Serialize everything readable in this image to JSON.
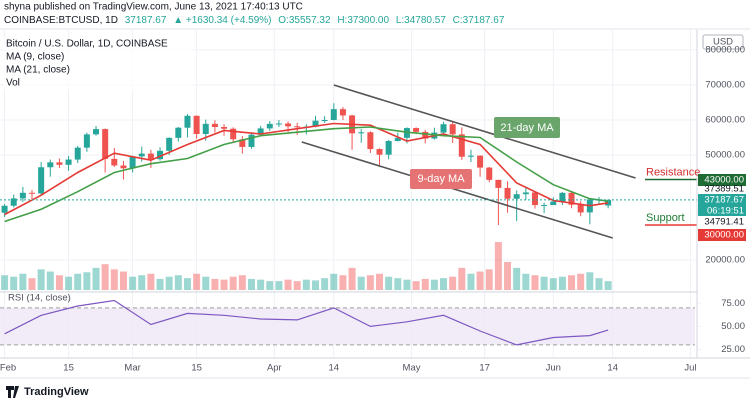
{
  "header": {
    "publisher": "shyna published on TradingView.com, June 13, 2021 17:40:13 UTC",
    "symbol": "COINBASE:BTCUSD, 1D",
    "last": "37187.67",
    "change": "▲ +1630.34 (+4.59%)",
    "open": "O:35557.32",
    "high": "H:37300.00",
    "low": "L:34780.57",
    "close": "C:37187.67"
  },
  "footer": {
    "brand": "TradingView"
  },
  "chart_data": {
    "type": "candlestick",
    "title": "Bitcoin / U.S. Dollar, 1D, COINBASE",
    "x": [
      "2021-02-01",
      "2021-02-03",
      "2021-02-05",
      "2021-02-07",
      "2021-02-09",
      "2021-02-11",
      "2021-02-13",
      "2021-02-15",
      "2021-02-17",
      "2021-02-19",
      "2021-02-21",
      "2021-02-23",
      "2021-02-25",
      "2021-02-27",
      "2021-03-01",
      "2021-03-03",
      "2021-03-05",
      "2021-03-07",
      "2021-03-09",
      "2021-03-11",
      "2021-03-13",
      "2021-03-15",
      "2021-03-17",
      "2021-03-19",
      "2021-03-21",
      "2021-03-23",
      "2021-03-25",
      "2021-03-27",
      "2021-03-29",
      "2021-03-31",
      "2021-04-02",
      "2021-04-04",
      "2021-04-06",
      "2021-04-08",
      "2021-04-10",
      "2021-04-12",
      "2021-04-14",
      "2021-04-16",
      "2021-04-18",
      "2021-04-20",
      "2021-04-22",
      "2021-04-24",
      "2021-04-26",
      "2021-04-28",
      "2021-04-30",
      "2021-05-02",
      "2021-05-04",
      "2021-05-06",
      "2021-05-08",
      "2021-05-10",
      "2021-05-12",
      "2021-05-14",
      "2021-05-16",
      "2021-05-18",
      "2021-05-20",
      "2021-05-22",
      "2021-05-24",
      "2021-05-26",
      "2021-05-28",
      "2021-05-30",
      "2021-06-01",
      "2021-06-03",
      "2021-06-05",
      "2021-06-07",
      "2021-06-09",
      "2021-06-11",
      "2021-06-13"
    ],
    "open": [
      33500,
      35500,
      37600,
      39200,
      39000,
      46500,
      47900,
      47200,
      48700,
      52100,
      55900,
      57400,
      48900,
      47000,
      46200,
      49600,
      50400,
      48800,
      51200,
      54900,
      57800,
      61200,
      56000,
      58900,
      58000,
      57500,
      54500,
      52300,
      55800,
      57600,
      58900,
      59000,
      58200,
      58000,
      58100,
      59800,
      60000,
      63100,
      61300,
      56200,
      56500,
      51700,
      50100,
      54000,
      54900,
      57700,
      56600,
      54700,
      56400,
      58800,
      55900,
      49500,
      49800,
      46400,
      42900,
      40600,
      37500,
      38800,
      39300,
      35700,
      35700,
      36700,
      39200,
      35800,
      33600,
      37300,
      35560
    ],
    "high": [
      36000,
      38700,
      40900,
      40000,
      48000,
      48700,
      49000,
      49700,
      52600,
      56400,
      58300,
      57600,
      52000,
      48300,
      49800,
      52400,
      51500,
      52200,
      55000,
      58000,
      61700,
      61300,
      60100,
      59900,
      58800,
      57900,
      55400,
      56500,
      58300,
      59700,
      60000,
      59600,
      59200,
      58800,
      61200,
      61100,
      64800,
      63700,
      61500,
      57400,
      56800,
      51900,
      54300,
      56400,
      57900,
      57900,
      57200,
      57800,
      59500,
      59500,
      57900,
      51500,
      49900,
      46600,
      42900,
      42500,
      39900,
      40800,
      39400,
      36400,
      37900,
      39400,
      39300,
      36800,
      37500,
      38000,
      37300
    ],
    "low": [
      32300,
      35000,
      36600,
      37400,
      38300,
      43800,
      46300,
      45500,
      47700,
      50900,
      55500,
      45000,
      46600,
      43000,
      45000,
      48100,
      46300,
      48400,
      50000,
      53800,
      55000,
      54700,
      54100,
      56400,
      55500,
      53400,
      50400,
      51800,
      55400,
      56900,
      58000,
      56500,
      55700,
      55900,
      57900,
      59200,
      59900,
      60000,
      51500,
      53500,
      50600,
      47100,
      48800,
      53900,
      53300,
      56000,
      53300,
      54400,
      56000,
      53400,
      48600,
      48000,
      43800,
      42200,
      30000,
      33500,
      31100,
      37200,
      34700,
      33400,
      35700,
      35700,
      34800,
      32500,
      30200,
      35900,
      34780
    ],
    "close": [
      35500,
      37600,
      39200,
      39000,
      46500,
      47900,
      47200,
      48700,
      52100,
      55900,
      57400,
      48900,
      47000,
      46200,
      49600,
      50400,
      48800,
      51200,
      54900,
      57800,
      61200,
      56000,
      58900,
      58000,
      57500,
      54500,
      52300,
      55800,
      57600,
      58900,
      59000,
      58200,
      58000,
      58100,
      59800,
      60000,
      63100,
      61300,
      56200,
      56500,
      51700,
      50100,
      54000,
      54900,
      57700,
      56600,
      54700,
      56400,
      58800,
      55900,
      49500,
      49800,
      46400,
      42900,
      40600,
      37500,
      38800,
      39300,
      35700,
      35700,
      36700,
      39200,
      35800,
      33600,
      37300,
      37300,
      37190
    ],
    "volume": [
      20,
      18,
      22,
      16,
      28,
      25,
      20,
      18,
      22,
      24,
      30,
      35,
      28,
      25,
      18,
      20,
      22,
      15,
      18,
      20,
      16,
      22,
      18,
      15,
      14,
      18,
      20,
      15,
      14,
      12,
      12,
      14,
      12,
      14,
      13,
      16,
      22,
      20,
      30,
      18,
      20,
      22,
      18,
      16,
      14,
      12,
      15,
      14,
      16,
      18,
      30,
      22,
      25,
      28,
      65,
      38,
      30,
      22,
      20,
      18,
      16,
      18,
      20,
      22,
      24,
      16,
      12
    ],
    "volume_label": "Vol",
    "up_color": "#26a69a",
    "down_color": "#ef5350",
    "xlim": [
      "2021-01-31",
      "2021-07-02"
    ],
    "xticks": [
      {
        "value": "2021-02-01",
        "label": "Feb"
      },
      {
        "value": "2021-02-15",
        "label": "15"
      },
      {
        "value": "2021-03-01",
        "label": "Mar"
      },
      {
        "value": "2021-03-15",
        "label": "15"
      },
      {
        "value": "2021-04-01",
        "label": "Apr"
      },
      {
        "value": "2021-04-14",
        "label": "14"
      },
      {
        "value": "2021-05-01",
        "label": "May"
      },
      {
        "value": "2021-05-17",
        "label": "17"
      },
      {
        "value": "2021-06-01",
        "label": "Jun"
      },
      {
        "value": "2021-06-14",
        "label": "14"
      },
      {
        "value": "2021-07-01",
        "label": "Jul"
      }
    ],
    "ylim": [
      11428,
      82857
    ],
    "yticks": [
      {
        "value": 20000,
        "label": "20000.00"
      },
      {
        "value": 50000,
        "label": "50000.00"
      },
      {
        "value": 60000,
        "label": "60000.00"
      },
      {
        "value": 70000,
        "label": "70000.00"
      },
      {
        "value": 80000,
        "label": "80000.00"
      }
    ],
    "y_unit": "USD",
    "grid": true,
    "series": [
      {
        "name": "MA (9, close)",
        "color": "#e53935",
        "x": [
          "2021-02-01",
          "2021-02-09",
          "2021-02-17",
          "2021-02-25",
          "2021-03-05",
          "2021-03-13",
          "2021-03-21",
          "2021-03-29",
          "2021-04-06",
          "2021-04-14",
          "2021-04-22",
          "2021-04-30",
          "2021-05-08",
          "2021-05-16",
          "2021-05-24",
          "2021-06-01",
          "2021-06-09",
          "2021-06-13"
        ],
        "values": [
          33000,
          38500,
          45000,
          50500,
          48500,
          53000,
          57000,
          56000,
          57500,
          59000,
          58500,
          54000,
          56000,
          53000,
          42000,
          37000,
          35500,
          36300
        ]
      },
      {
        "name": "MA (21, close)",
        "color": "#43a047",
        "x": [
          "2021-02-01",
          "2021-02-09",
          "2021-02-17",
          "2021-02-25",
          "2021-03-05",
          "2021-03-13",
          "2021-03-21",
          "2021-03-29",
          "2021-04-06",
          "2021-04-14",
          "2021-04-22",
          "2021-04-30",
          "2021-05-08",
          "2021-05-16",
          "2021-05-24",
          "2021-06-01",
          "2021-06-09",
          "2021-06-13"
        ],
        "values": [
          31000,
          34500,
          39500,
          45000,
          47500,
          49000,
          53000,
          55500,
          56500,
          57500,
          58000,
          56500,
          55500,
          55000,
          48000,
          41500,
          37500,
          36800
        ]
      }
    ],
    "trendlines": [
      {
        "x": [
          "2021-04-14",
          "2021-06-19"
        ],
        "values": [
          70000,
          43430
        ],
        "color": "#555"
      },
      {
        "x": [
          "2021-04-07",
          "2021-06-14"
        ],
        "values": [
          53714,
          26286
        ],
        "color": "#555"
      }
    ],
    "levels": [
      {
        "name": "Resistance",
        "value": 43000,
        "text_color": "#d32f2f",
        "line_color": "#1e6b34"
      },
      {
        "name": "Support",
        "value": 30000,
        "text_color": "#1e7b34",
        "line_color": "#e53935"
      }
    ],
    "price_labels": [
      {
        "value": 43000,
        "label": "43000.00",
        "box": "#1e6b34"
      },
      {
        "value": 37389.51,
        "label": "37389.51"
      },
      {
        "value": 37187.67,
        "label": "37187.67",
        "box": "#26a69a"
      },
      {
        "value": 34791.41,
        "label": "34791.41"
      },
      {
        "value": 30000,
        "label": "30000.00",
        "box": "#e53935"
      }
    ],
    "countdown": "06:19:51",
    "annotations": [
      {
        "text": "21-day MA",
        "color": "#6aa56b"
      },
      {
        "text": "9-day MA",
        "color": "#e57373"
      }
    ],
    "rsi": {
      "name": "RSI (14, close)",
      "color": "#7e57c2",
      "x": [
        "2021-02-01",
        "2021-02-09",
        "2021-02-17",
        "2021-02-25",
        "2021-03-05",
        "2021-03-13",
        "2021-03-21",
        "2021-03-29",
        "2021-04-06",
        "2021-04-14",
        "2021-04-22",
        "2021-04-30",
        "2021-05-08",
        "2021-05-16",
        "2021-05-24",
        "2021-06-01",
        "2021-06-09",
        "2021-06-13"
      ],
      "values": [
        42,
        62,
        72,
        78,
        52,
        64,
        62,
        58,
        57,
        70,
        50,
        55,
        62,
        45,
        30,
        38,
        40,
        46
      ],
      "ylim": [
        18,
        85
      ],
      "band": [
        30,
        70
      ],
      "yticks": [
        {
          "value": 25,
          "label": "25.00"
        },
        {
          "value": 50,
          "label": "50.00"
        },
        {
          "value": 75,
          "label": "75.00"
        }
      ]
    }
  }
}
